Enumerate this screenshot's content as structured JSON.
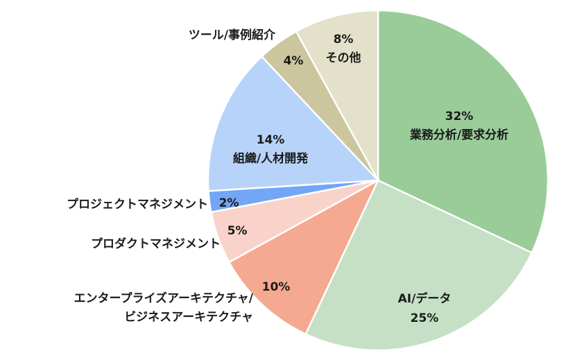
{
  "chart_data": {
    "type": "pie",
    "title": "",
    "slices": [
      {
        "category": "業務分析/要求分析",
        "value": 32,
        "value_label": "32%",
        "color": "#99cc99"
      },
      {
        "category": "AI/データ",
        "value": 25,
        "value_label": "25%",
        "color": "#c5e0c5"
      },
      {
        "category": "エンタープライズアーキテクチャ/ビジネスアーキテクチャ",
        "value": 10,
        "value_label": "10%",
        "color": "#f4a990",
        "label_lines": [
          "エンタープライズアーキテクチャ/",
          "ビジネスアーキテクチャ"
        ]
      },
      {
        "category": "プロダクトマネジメント",
        "value": 5,
        "value_label": "5%",
        "color": "#f9d3c9"
      },
      {
        "category": "プロジェクトマネジメント",
        "value": 2,
        "value_label": "2%",
        "color": "#73a6f5"
      },
      {
        "category": "組織/人材開発",
        "value": 14,
        "value_label": "14%",
        "color": "#b7d3f9"
      },
      {
        "category": "ツール/事例紹介",
        "value": 4,
        "value_label": "4%",
        "color": "#cbc69e"
      },
      {
        "category": "その他",
        "value": 8,
        "value_label": "8%",
        "color": "#e3e1c9"
      }
    ],
    "start_angle": "12 o'clock",
    "direction": "clockwise",
    "legend": "none"
  }
}
